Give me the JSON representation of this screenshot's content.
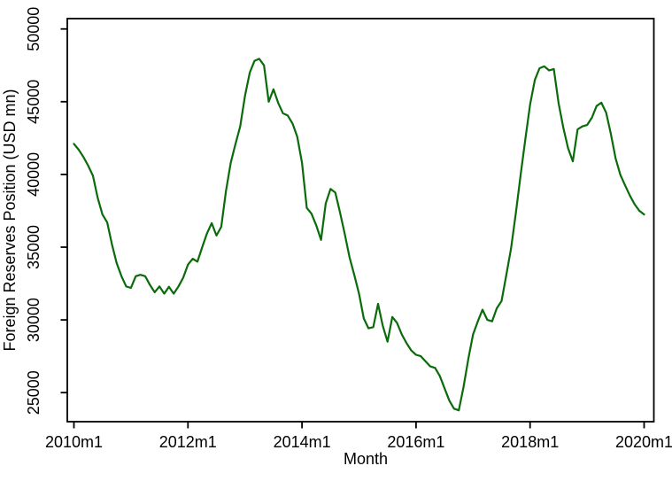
{
  "chart_data": {
    "type": "line",
    "title": "",
    "xlabel": "Month",
    "ylabel": "Foreign Reserves Position (USD mn)",
    "x_start": "2010m1",
    "x_end": "2020m1",
    "frequency": "monthly",
    "x_tick_labels": [
      "2010m1",
      "2012m1",
      "2014m1",
      "2016m1",
      "2018m1",
      "2020m1"
    ],
    "x_tick_month_indices": [
      0,
      24,
      48,
      72,
      96,
      120
    ],
    "y_tick_labels": [
      "25000",
      "30000",
      "35000",
      "40000",
      "45000",
      "50000"
    ],
    "y_ticks": [
      25000,
      30000,
      35000,
      40000,
      45000,
      50000
    ],
    "ylim": [
      23000,
      50700
    ],
    "grid": "off",
    "legend": "none",
    "line_color": "#0a6b0a",
    "axis_color": "#000000",
    "background_color": "#ffffff",
    "series": [
      {
        "name": "Foreign Reserves Position (USD mn)",
        "values": [
          42100,
          41700,
          41200,
          40600,
          39900,
          38400,
          37250,
          36700,
          35200,
          33900,
          33000,
          32300,
          32200,
          33000,
          33100,
          33000,
          32400,
          31900,
          32300,
          31800,
          32280,
          31800,
          32300,
          32900,
          33800,
          34200,
          34000,
          35000,
          35950,
          36650,
          35800,
          36400,
          38850,
          40800,
          42100,
          43300,
          45400,
          47000,
          47800,
          47950,
          47500,
          45000,
          45850,
          44900,
          44200,
          44050,
          43500,
          42600,
          40800,
          37700,
          37300,
          36500,
          35500,
          38000,
          39000,
          38750,
          37400,
          35900,
          34300,
          33100,
          31800,
          30100,
          29420,
          29500,
          31100,
          29600,
          28500,
          30200,
          29800,
          29000,
          28400,
          27900,
          27600,
          27500,
          27150,
          26800,
          26700,
          26150,
          25300,
          24450,
          23900,
          23780,
          25400,
          27300,
          29000,
          29900,
          30700,
          30000,
          29900,
          30800,
          31300,
          33100,
          34900,
          37330,
          39950,
          42400,
          44800,
          46500,
          47300,
          47430,
          47150,
          47250,
          44900,
          43200,
          41800,
          40900,
          43100,
          43300,
          43400,
          43900,
          44700,
          44930,
          44250,
          42800,
          41100,
          39970,
          39250,
          38550,
          37950,
          37500,
          37250
        ]
      }
    ]
  }
}
